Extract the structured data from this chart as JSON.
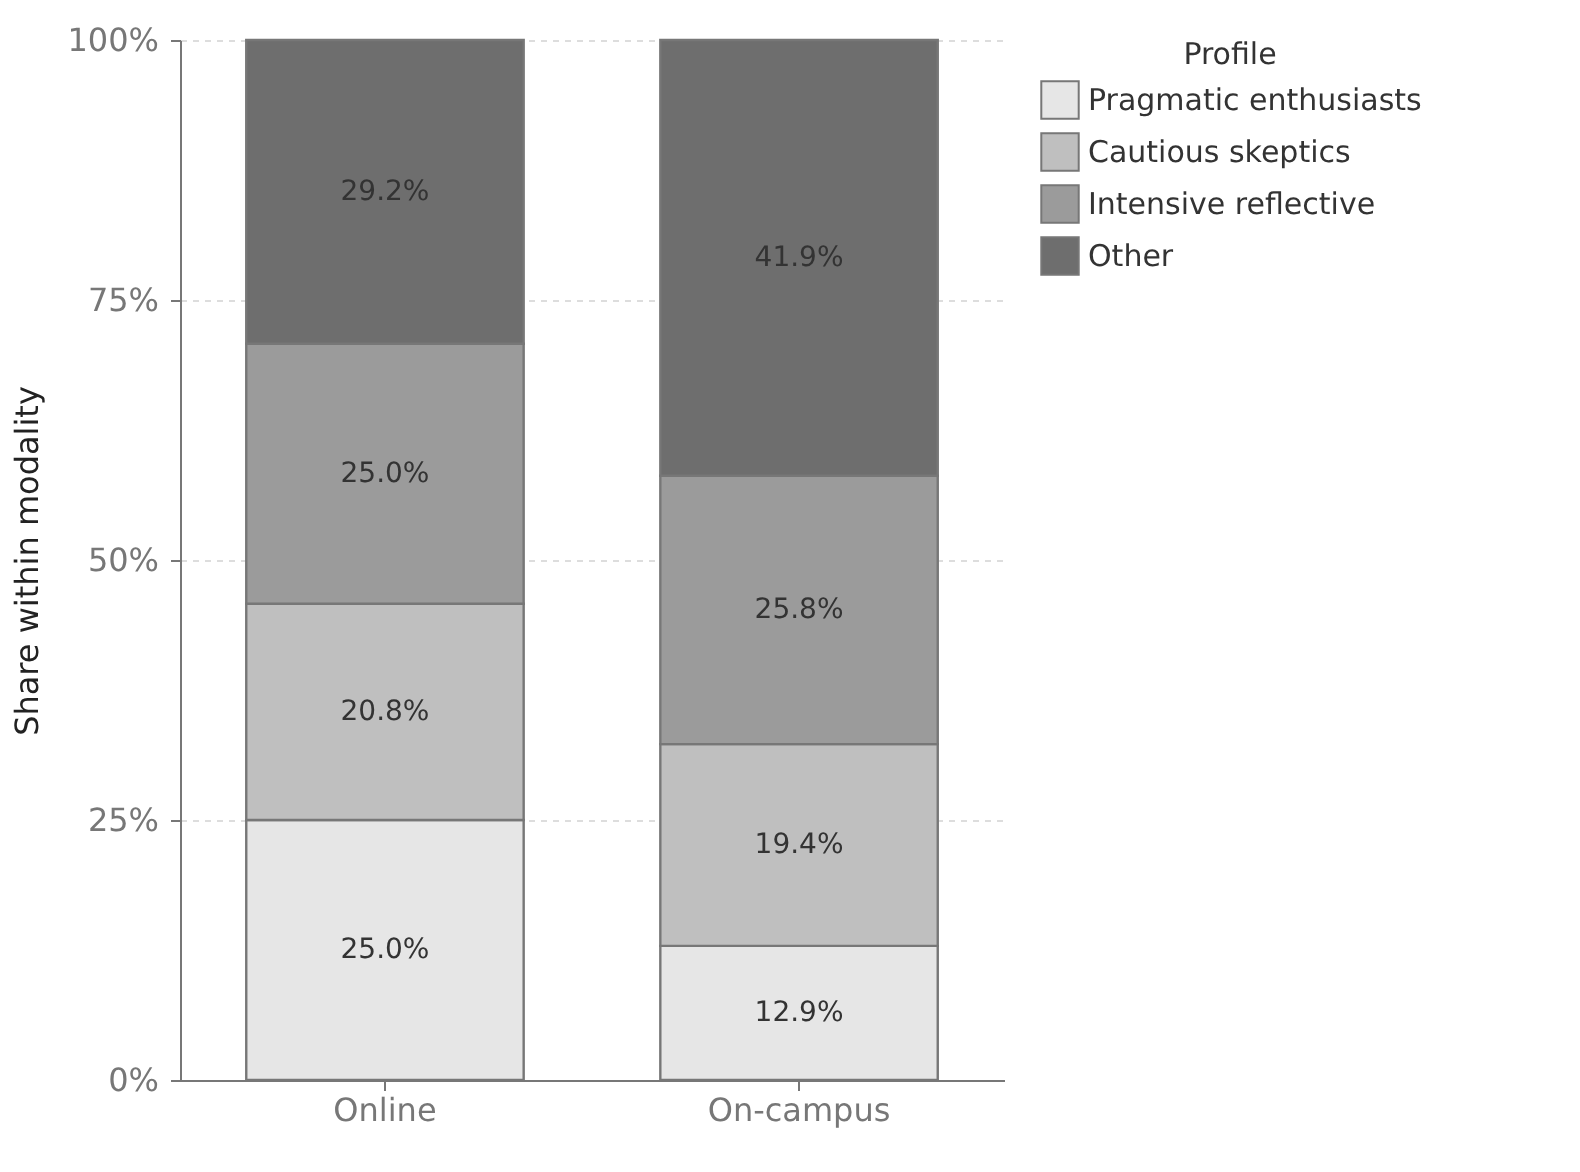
{
  "chart_data": {
    "type": "bar",
    "stacked": true,
    "ylabel": "Share within modality",
    "legend_title": "Profile",
    "legend": "right",
    "grid": true,
    "categories": [
      "Online",
      "On-campus"
    ],
    "ylim": [
      0,
      100
    ],
    "yticks": [
      {
        "value": 0,
        "label": "0%"
      },
      {
        "value": 25,
        "label": "25%"
      },
      {
        "value": 50,
        "label": "50%"
      },
      {
        "value": 75,
        "label": "75%"
      },
      {
        "value": 100,
        "label": "100%"
      }
    ],
    "series": [
      {
        "name": "Pragmatic enthusiasts",
        "color": "#e6e6e6",
        "values": [
          25.0,
          12.9
        ],
        "value_labels": [
          "25.0%",
          "12.9%"
        ]
      },
      {
        "name": "Cautious skeptics",
        "color": "#bfbfbf",
        "values": [
          20.8,
          19.4
        ],
        "value_labels": [
          "20.8%",
          "19.4%"
        ]
      },
      {
        "name": "Intensive reflective",
        "color": "#9b9b9b",
        "values": [
          25.0,
          25.8
        ],
        "value_labels": [
          "25.0%",
          "25.8%"
        ]
      },
      {
        "name": "Other",
        "color": "#6e6e6e",
        "values": [
          29.2,
          41.9
        ],
        "value_labels": [
          "29.2%",
          "41.9%"
        ]
      }
    ]
  }
}
